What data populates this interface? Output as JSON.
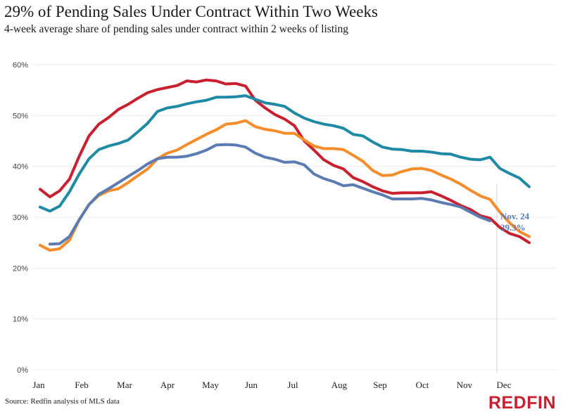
{
  "chart_data": {
    "type": "line",
    "title": "29% of Pending Sales Under Contract Within Two Weeks",
    "subtitle": "4-week average share of pending sales under contract within 2 weeks of listing",
    "xlabel": "",
    "ylabel": "",
    "x_unit": "week of year",
    "x_ticks": [
      "Jan",
      "Feb",
      "Mar",
      "Apr",
      "May",
      "Jun",
      "Jul",
      "Aug",
      "Sep",
      "Oct",
      "Nov",
      "Dec"
    ],
    "y_ticks": [
      "0%",
      "10%",
      "20%",
      "30%",
      "40%",
      "50%",
      "60%"
    ],
    "ylim": [
      0,
      60
    ],
    "grid": true,
    "legend": "none",
    "series": [
      {
        "name": "red-series",
        "color": "#c8202f",
        "values": [
          35.5,
          34.0,
          35.2,
          37.5,
          42.0,
          46.0,
          48.3,
          49.6,
          51.2,
          52.2,
          53.4,
          54.5,
          55.1,
          55.5,
          55.9,
          56.8,
          56.6,
          57.0,
          56.8,
          56.2,
          56.3,
          55.8,
          53.0,
          51.5,
          50.2,
          49.3,
          48.0,
          45.0,
          43.2,
          41.3,
          40.2,
          39.5,
          37.8,
          37.0,
          36.0,
          35.2,
          34.7,
          34.8,
          34.8,
          34.8,
          35.0,
          34.2,
          33.3,
          32.3,
          31.5,
          30.3,
          29.8,
          28.0,
          26.8,
          26.2,
          25.0
        ]
      },
      {
        "name": "teal-series",
        "color": "#1f8aa5",
        "values": [
          32.0,
          31.2,
          32.2,
          35.0,
          38.5,
          41.5,
          43.3,
          44.0,
          44.5,
          45.2,
          46.8,
          48.5,
          50.8,
          51.5,
          51.8,
          52.3,
          52.7,
          53.0,
          53.6,
          53.6,
          53.7,
          53.9,
          53.2,
          52.5,
          52.2,
          51.8,
          50.5,
          49.5,
          48.8,
          48.3,
          48.0,
          47.5,
          46.3,
          46.0,
          44.8,
          43.8,
          43.4,
          43.3,
          43.0,
          43.0,
          42.8,
          42.5,
          42.4,
          41.8,
          41.4,
          41.3,
          41.8,
          39.6,
          38.6,
          37.7,
          36.0
        ]
      },
      {
        "name": "orange-series",
        "color": "#f68c2a",
        "values": [
          24.5,
          23.5,
          23.8,
          25.5,
          29.5,
          32.5,
          34.3,
          35.2,
          35.6,
          36.8,
          38.2,
          39.5,
          41.5,
          42.6,
          43.2,
          44.3,
          45.3,
          46.3,
          47.2,
          48.3,
          48.5,
          49.0,
          47.8,
          47.3,
          47.0,
          46.5,
          46.5,
          45.2,
          44.0,
          43.5,
          43.5,
          43.3,
          42.2,
          41.0,
          39.2,
          38.2,
          38.3,
          39.0,
          39.5,
          39.6,
          39.2,
          38.3,
          37.5,
          36.5,
          35.3,
          34.2,
          33.5,
          31.0,
          28.9,
          27.2,
          26.2
        ]
      },
      {
        "name": "blue-series",
        "color": "#5b7bb2",
        "values": [
          null,
          24.7,
          24.8,
          26.2,
          29.5,
          32.5,
          34.5,
          35.6,
          36.8,
          38.0,
          39.2,
          40.5,
          41.5,
          41.8,
          41.8,
          42.0,
          42.5,
          43.2,
          44.2,
          44.3,
          44.2,
          43.8,
          42.6,
          41.8,
          41.4,
          40.8,
          40.9,
          40.3,
          38.5,
          37.6,
          37.0,
          36.2,
          36.4,
          35.7,
          35.0,
          34.4,
          33.6,
          33.6,
          33.6,
          33.7,
          33.4,
          32.9,
          32.5,
          32.0,
          31.0,
          30.0,
          29.3,
          null,
          null,
          null,
          null
        ]
      }
    ],
    "annotation": {
      "line1": "Nov. 24",
      "line2": "29.3%",
      "series": "blue-series",
      "reference_line": "Nov. 24"
    },
    "source": "Source: Redfin analysis of MLS data",
    "logo": "REDFIN"
  }
}
